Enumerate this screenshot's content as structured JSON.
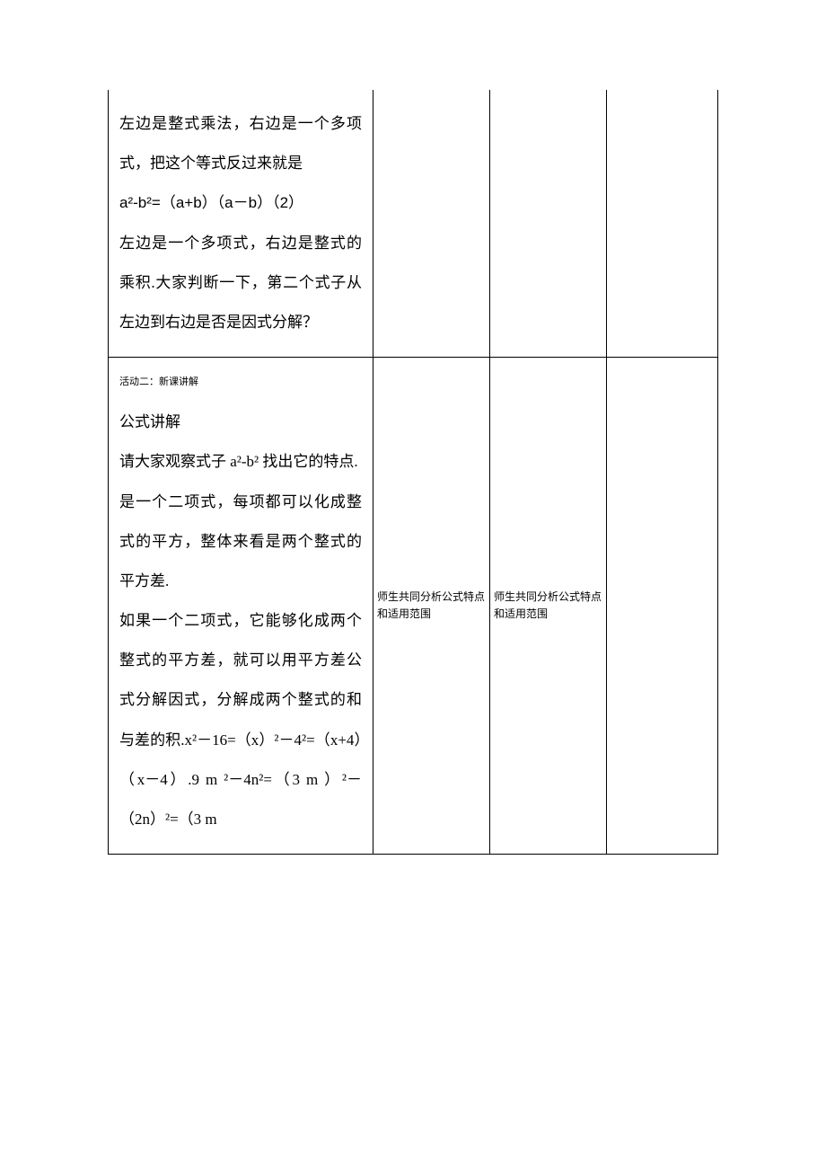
{
  "row1": {
    "content": "左边是整式乘法，右边是一个多项式，把这个等式反过来就是",
    "formula": "a²-b²=（a+b）（a－b）（2）",
    "content2": "左边是一个多项式，右边是整式的乘积.大家判断一下，第二个式子从左边到右边是否是因式分解？"
  },
  "row2": {
    "heading": "活动二：新课讲解",
    "sub1": "公式讲解",
    "p1": "请大家观察式子 a²-b² 找出它的特点.",
    "p2": "是一个二项式，每项都可以化成整式的平方，整体来看是两个整式的平方差.",
    "p3_part1": "如果一个二项式，它能够化成两个整式的平方差，就可以用平方差公式分解因式，分解成两个整式的和与差的积.x²－16=（x）²－4²=（x+4）（x－4）.9 m ²－4n²=（3 m ）²－（2n）²=（3 m",
    "col2": "师生共同分析公式特点和适用范围",
    "col3": "师生共同分析公式特点和适用范围"
  },
  "styles": {
    "background": "#ffffff",
    "border_color": "#000000",
    "main_fontsize": 17,
    "small_fontsize": 12,
    "heading_fontsize": 11,
    "line_height_main": 2.6
  }
}
